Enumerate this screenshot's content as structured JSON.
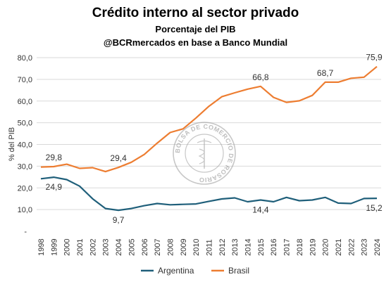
{
  "chart_data": {
    "type": "line",
    "title": "Crédito interno al sector privado",
    "subtitle": "Porcentaje del PIB",
    "source": "@BCRmercados en base a Banco Mundial",
    "ylabel": "% del PIB",
    "xlabel": "",
    "ylim": [
      0,
      80
    ],
    "yticks": [
      "-",
      "10,0",
      "20,0",
      "30,0",
      "40,0",
      "50,0",
      "60,0",
      "70,0",
      "80,0"
    ],
    "x": [
      "1998",
      "1999",
      "2000",
      "2001",
      "2002",
      "2003",
      "2004",
      "2005",
      "2006",
      "2007",
      "2008",
      "2009",
      "2010",
      "2011",
      "2012",
      "2013",
      "2014",
      "2015",
      "2016",
      "2017",
      "2018",
      "2019",
      "2020",
      "2021",
      "2022",
      "2023",
      "2024"
    ],
    "series": [
      {
        "name": "Argentina",
        "color": "#1f5f7a",
        "values": [
          24.2,
          24.9,
          23.8,
          20.8,
          15.0,
          10.5,
          9.7,
          10.5,
          11.8,
          12.8,
          12.2,
          12.4,
          12.6,
          13.8,
          14.9,
          15.4,
          13.6,
          14.4,
          13.6,
          15.6,
          14.1,
          14.4,
          15.6,
          13.0,
          12.8,
          15.1,
          15.2
        ]
      },
      {
        "name": "Brasil",
        "color": "#ed7d31",
        "values": [
          29.6,
          29.8,
          30.9,
          29.0,
          29.3,
          27.5,
          29.4,
          31.8,
          35.4,
          40.6,
          45.5,
          47.2,
          52.2,
          57.6,
          62.0,
          63.8,
          65.5,
          66.8,
          61.7,
          59.4,
          60.1,
          62.6,
          68.7,
          68.7,
          70.5,
          71.0,
          75.9
        ]
      }
    ],
    "annotations": [
      {
        "series": 0,
        "x": "1999",
        "label": "24,9",
        "pos": "below"
      },
      {
        "series": 0,
        "x": "2004",
        "label": "9,7",
        "pos": "below"
      },
      {
        "series": 0,
        "x": "2015",
        "label": "14,4",
        "pos": "below"
      },
      {
        "series": 0,
        "x": "2024",
        "label": "15,2",
        "pos": "below"
      },
      {
        "series": 1,
        "x": "1999",
        "label": "29,8",
        "pos": "above"
      },
      {
        "series": 1,
        "x": "2004",
        "label": "29,4",
        "pos": "above"
      },
      {
        "series": 1,
        "x": "2015",
        "label": "66,8",
        "pos": "above"
      },
      {
        "series": 1,
        "x": "2020",
        "label": "68,7",
        "pos": "above"
      },
      {
        "series": 1,
        "x": "2024",
        "label": "75,9",
        "pos": "above"
      }
    ],
    "watermark": "BOLSA DE COMERCIO DE ROSARIO",
    "grid": true,
    "legend": "bottom"
  }
}
